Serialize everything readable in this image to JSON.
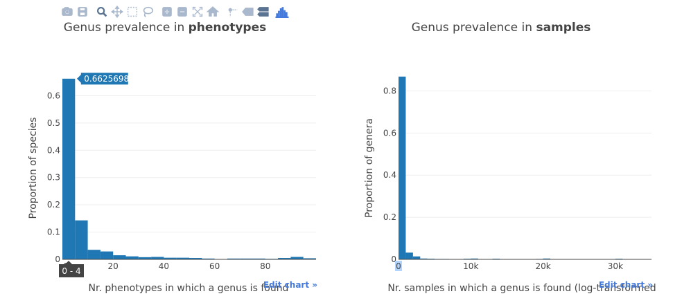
{
  "toolbar": {
    "buttons": [
      {
        "name": "camera-icon",
        "title": "Download plot as a png"
      },
      {
        "name": "save-icon",
        "title": "Save and edit plot in cloud"
      },
      {
        "name": "zoom-icon",
        "title": "Zoom"
      },
      {
        "name": "pan-icon",
        "title": "Pan"
      },
      {
        "name": "box-select-icon",
        "title": "Box Select"
      },
      {
        "name": "lasso-select-icon",
        "title": "Lasso Select"
      },
      {
        "name": "zoom-in-icon",
        "title": "Zoom in"
      },
      {
        "name": "zoom-out-icon",
        "title": "Zoom out"
      },
      {
        "name": "autoscale-icon",
        "title": "Autoscale"
      },
      {
        "name": "reset-axes-icon",
        "title": "Reset axes"
      },
      {
        "name": "spike-lines-icon",
        "title": "Toggle Spike Lines"
      },
      {
        "name": "hover-closest-icon",
        "title": "Show closest data on hover"
      },
      {
        "name": "hover-compare-icon",
        "title": "Compare data on hover"
      },
      {
        "name": "plotly-logo-icon",
        "title": "Produced with Plotly"
      }
    ]
  },
  "colors": {
    "bar": "#1f77b4",
    "grid": "#eeeeee",
    "axis_text": "#444444",
    "edit_link": "#447adb",
    "toolbar_icon": "#a9b8cc",
    "toolbar_active": "#5a7390",
    "plotly_logo": "#447adb",
    "tooltip_dark": "#444444"
  },
  "edit_chart_label": "Edit chart »",
  "chart_data": [
    {
      "type": "bar",
      "title_prefix": "Genus prevalence in ",
      "title_bold": "phenotypes",
      "xlabel": "Nr. phenotypes in which a genus is found",
      "ylabel": "Proportion of species",
      "xlim": [
        0,
        100
      ],
      "ylim": [
        0,
        0.695
      ],
      "xticks": [
        0,
        20,
        40,
        60,
        80
      ],
      "xtick_labels": [
        "0",
        "20",
        "40",
        "60",
        "80"
      ],
      "yticks": [
        0,
        0.1,
        0.2,
        0.3,
        0.4,
        0.5,
        0.6
      ],
      "ytick_labels": [
        "0",
        "0.1",
        "0.2",
        "0.3",
        "0.4",
        "0.5",
        "0.6"
      ],
      "bin_width": 5,
      "x": [
        0,
        5,
        10,
        15,
        20,
        25,
        30,
        35,
        40,
        45,
        50,
        55,
        60,
        65,
        70,
        75,
        80,
        85,
        90,
        95
      ],
      "values": [
        0.6625698,
        0.143,
        0.035,
        0.029,
        0.015,
        0.011,
        0.008,
        0.009,
        0.006,
        0.006,
        0.005,
        0.003,
        0.001,
        0.003,
        0.003,
        0.003,
        0.002,
        0.005,
        0.009,
        0.004
      ],
      "hover": {
        "value_label": "0.6625698",
        "category_label": "0 - 4"
      },
      "grid": true,
      "highlight_x_tick": false
    },
    {
      "type": "bar",
      "title_prefix": "Genus prevalence in ",
      "title_bold": "samples",
      "xlabel": "Nr. samples in which a genus is found (log-transformed",
      "ylabel": "Proportion of genera",
      "xlim": [
        0,
        35000
      ],
      "ylim": [
        0,
        0.9
      ],
      "xticks": [
        0,
        10000,
        20000,
        30000
      ],
      "xtick_labels": [
        "0",
        "10k",
        "20k",
        "30k"
      ],
      "yticks": [
        0,
        0.2,
        0.4,
        0.6,
        0.8
      ],
      "ytick_labels": [
        "0",
        "0.2",
        "0.4",
        "0.6",
        "0.8"
      ],
      "bin_width": 1000,
      "x": [
        0,
        1000,
        2000,
        3000,
        4000,
        5000,
        6000,
        7000,
        8000,
        9000,
        10000,
        11000,
        12000,
        13000,
        14000,
        15000,
        16000,
        17000,
        18000,
        19000,
        20000,
        21000,
        22000,
        23000,
        24000,
        25000,
        26000,
        27000,
        28000,
        29000,
        30000,
        31000,
        32000,
        33000,
        34000
      ],
      "values": [
        0.868,
        0.032,
        0.014,
        0.004,
        0.003,
        0.002,
        0.002,
        0.001,
        0.001,
        0.003,
        0.004,
        0.001,
        0.001,
        0.003,
        0.001,
        0.001,
        0.001,
        0.001,
        0.001,
        0.002,
        0.004,
        0.001,
        0.001,
        0.001,
        0.001,
        0.001,
        0.001,
        0.001,
        0.001,
        0.001,
        0.003,
        0.001,
        0.001,
        0.001,
        0.001
      ],
      "grid": true,
      "highlight_x_tick": true
    }
  ]
}
